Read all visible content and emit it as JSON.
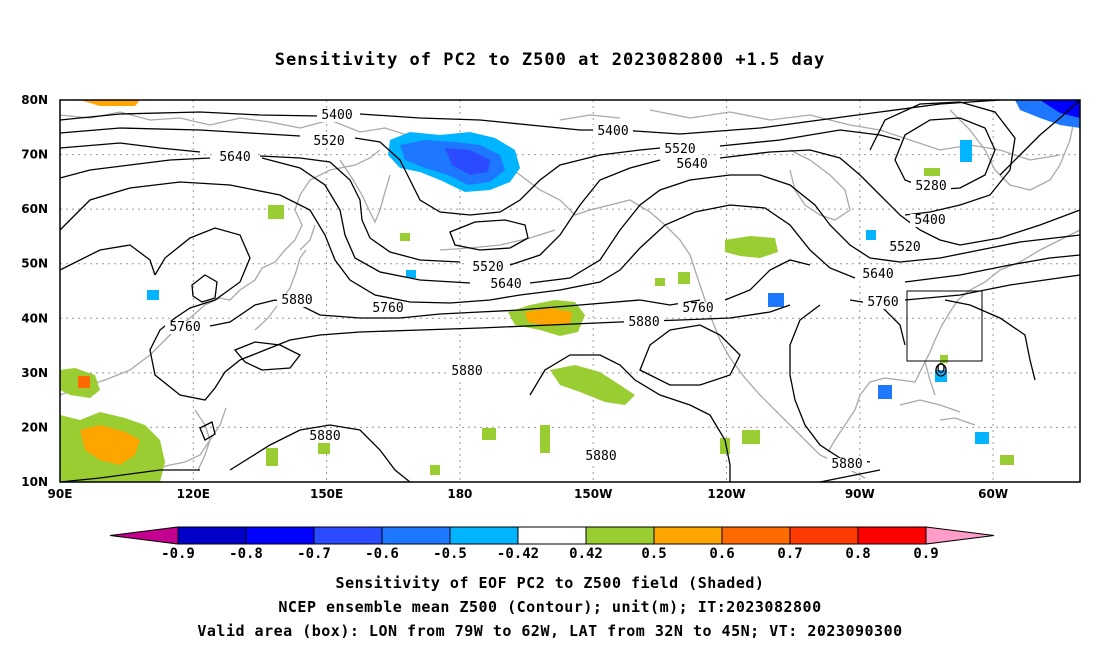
{
  "title": "Sensitivity of PC2 to Z500 at 2023082800 +1.5 day",
  "map": {
    "lat_ticks": [
      "80N",
      "70N",
      "60N",
      "50N",
      "40N",
      "30N",
      "20N",
      "10N"
    ],
    "lon_ticks": [
      "90E",
      "120E",
      "150E",
      "180",
      "150W",
      "120W",
      "90W",
      "60W"
    ],
    "contour_labels": [
      "5400",
      "5520",
      "5640",
      "5760",
      "5880",
      "5280"
    ],
    "valid_box": {
      "lon_range": [
        "79W",
        "62W"
      ],
      "lat_range": [
        "32N",
        "45N"
      ]
    }
  },
  "colorbar": {
    "labels": [
      "-0.9",
      "-0.8",
      "-0.7",
      "-0.6",
      "-0.5",
      "-0.42",
      "0.42",
      "0.5",
      "0.6",
      "0.7",
      "0.8",
      "0.9"
    ],
    "colors": [
      "#c3008f",
      "#0000c8",
      "#0000ff",
      "#2a4bff",
      "#1e78ff",
      "#00b4ff",
      "#ffffff",
      "#9acd32",
      "#ffa500",
      "#ff6b00",
      "#ff3a00",
      "#ff0000",
      "#ff9cc8"
    ]
  },
  "caption": {
    "line1": "Sensitivity of EOF PC2 to Z500 field (Shaded)",
    "line2": "NCEP ensemble mean Z500 (Contour); unit(m); IT:2023082800",
    "line3": "Valid area (box): LON from 79W to 62W, LAT from 32N to 45N; VT: 2023090300"
  }
}
